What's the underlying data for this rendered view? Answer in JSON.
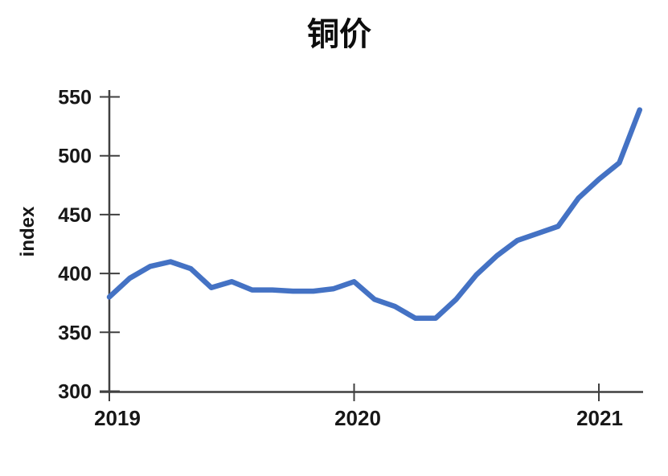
{
  "chart_data": {
    "type": "line",
    "title": "铜价",
    "ylabel": "index",
    "xlabel": "",
    "x_tick_labels": [
      "2019",
      "2020",
      "2021"
    ],
    "y_tick_labels": [
      300,
      350,
      400,
      450,
      500,
      550
    ],
    "ylim": [
      300,
      550
    ],
    "x_range": [
      "2019-01",
      "2021-03"
    ],
    "grid": false,
    "legend_position": "none",
    "line_color": "#4472C4",
    "axis_color": "#404040",
    "label_color": "#171717",
    "months": [
      "2019-01",
      "2019-02",
      "2019-03",
      "2019-04",
      "2019-05",
      "2019-06",
      "2019-07",
      "2019-08",
      "2019-09",
      "2019-10",
      "2019-11",
      "2019-12",
      "2020-01",
      "2020-02",
      "2020-03",
      "2020-04",
      "2020-05",
      "2020-06",
      "2020-07",
      "2020-08",
      "2020-09",
      "2020-10",
      "2020-11",
      "2020-12",
      "2021-01",
      "2021-02",
      "2021-03"
    ],
    "values": [
      380,
      396,
      406,
      410,
      404,
      388,
      393,
      386,
      386,
      385,
      385,
      387,
      393,
      378,
      372,
      362,
      362,
      378,
      399,
      415,
      428,
      434,
      440,
      464,
      480,
      494,
      539
    ]
  }
}
